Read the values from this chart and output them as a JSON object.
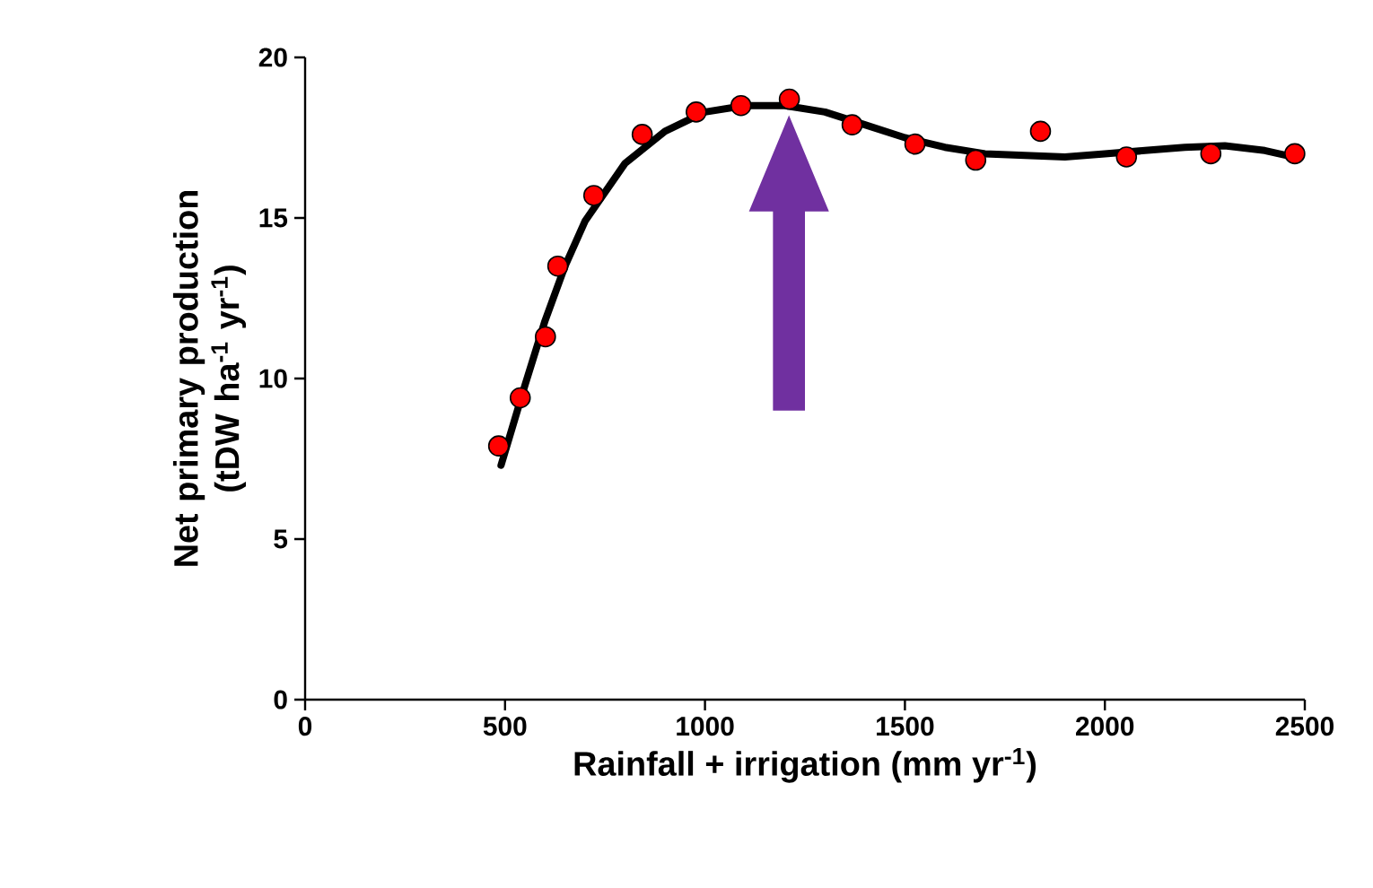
{
  "chart_data": {
    "type": "scatter",
    "xlabel": "Rainfall + irrigation (mm yr$^{-1}$)",
    "ylabel": "Net primary production (tDW ha$^{-1}$ yr$^{-1}$)",
    "xlim": [
      0,
      2500
    ],
    "ylim": [
      0,
      20
    ],
    "xticks": [
      0,
      500,
      1000,
      1500,
      2000,
      2500
    ],
    "yticks": [
      0,
      5,
      10,
      15,
      20
    ],
    "grid": false,
    "series": [
      {
        "color": "#ff0000",
        "marker": "circle",
        "x": [
          484,
          538,
          601,
          632,
          722,
          843,
          978,
          1090,
          1211,
          1368,
          1525,
          1677,
          1839,
          2054,
          2265,
          2475
        ],
        "values": [
          7.9,
          9.4,
          11.3,
          13.5,
          15.7,
          17.6,
          18.3,
          18.5,
          18.7,
          17.9,
          17.3,
          16.8,
          17.7,
          16.9,
          17.0,
          17.0
        ]
      },
      {
        "type": "line",
        "color": "#000000",
        "marker": "none",
        "line_style": "solid",
        "x": [
          490,
          550,
          600,
          650,
          700,
          800,
          900,
          1000,
          1100,
          1200,
          1300,
          1400,
          1500,
          1600,
          1700,
          1800,
          1900,
          2000,
          2100,
          2200,
          2300,
          2400,
          2470
        ],
        "values": [
          7.3,
          9.8,
          11.8,
          13.5,
          14.9,
          16.7,
          17.7,
          18.3,
          18.5,
          18.5,
          18.3,
          17.9,
          17.5,
          17.2,
          17.0,
          16.95,
          16.9,
          17.0,
          17.1,
          17.2,
          17.25,
          17.1,
          16.9
        ]
      }
    ]
  }
}
